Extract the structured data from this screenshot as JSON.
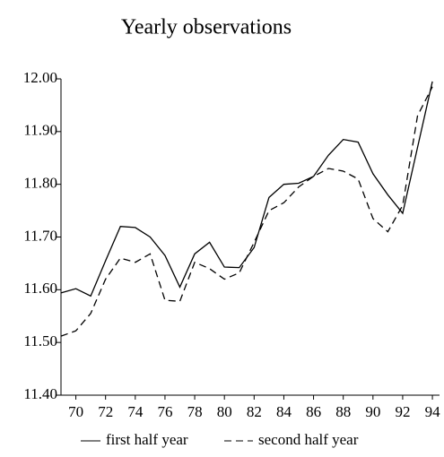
{
  "chart_data": {
    "type": "line",
    "title": "Yearly observations",
    "x": [
      69,
      70,
      71,
      72,
      73,
      74,
      75,
      76,
      77,
      78,
      79,
      80,
      81,
      82,
      83,
      84,
      85,
      86,
      87,
      88,
      89,
      90,
      91,
      92,
      93,
      94
    ],
    "series": [
      {
        "name": "first half year",
        "color": "#000000",
        "dash": "solid",
        "values": [
          11.594,
          11.602,
          11.588,
          11.655,
          11.72,
          11.718,
          11.7,
          11.665,
          11.605,
          11.668,
          11.69,
          11.643,
          11.642,
          11.68,
          11.775,
          11.8,
          11.802,
          11.815,
          11.855,
          11.885,
          11.88,
          11.82,
          11.78,
          11.745,
          11.87,
          11.995
        ]
      },
      {
        "name": "second half year",
        "color": "#000000",
        "dash": "dashed",
        "values": [
          11.512,
          11.522,
          11.555,
          11.62,
          11.66,
          11.652,
          11.668,
          11.58,
          11.578,
          11.652,
          11.64,
          11.62,
          11.632,
          11.69,
          11.75,
          11.765,
          11.795,
          11.815,
          11.83,
          11.825,
          11.81,
          11.735,
          11.71,
          11.76,
          11.93,
          11.985
        ]
      }
    ],
    "xlim": [
      69,
      94.6
    ],
    "ylim": [
      11.4,
      12.0
    ],
    "xticks": [
      70,
      72,
      74,
      76,
      78,
      80,
      82,
      84,
      86,
      88,
      90,
      92,
      94
    ],
    "yticks": [
      {
        "value": 11.4,
        "label": "11.40"
      },
      {
        "value": 11.5,
        "label": "11.50"
      },
      {
        "value": 11.6,
        "label": "11.60"
      },
      {
        "value": 11.7,
        "label": "11.70"
      },
      {
        "value": 11.8,
        "label": "11.80"
      },
      {
        "value": 11.9,
        "label": "11.90"
      },
      {
        "value": 12.0,
        "label": "12.00"
      }
    ],
    "legend": "bottom"
  }
}
